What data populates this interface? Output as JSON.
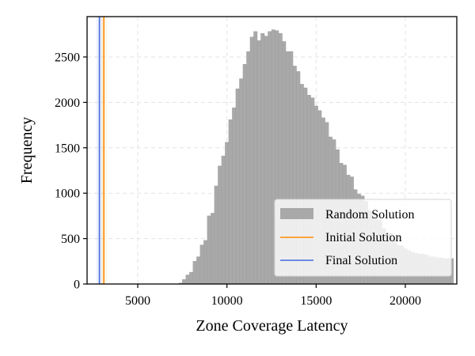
{
  "chart_data": {
    "type": "bar",
    "subtype": "histogram",
    "title": "",
    "xlabel": "Zone Coverage Latency",
    "ylabel": "Frequency",
    "xlim": [
      2160,
      22885
    ],
    "ylim": [
      0,
      2944
    ],
    "xticks": [
      5000,
      10000,
      15000,
      20000
    ],
    "xtick_labels": [
      "5000",
      "10000",
      "15000",
      "20000"
    ],
    "yticks": [
      0,
      500,
      1000,
      1500,
      2000,
      2500
    ],
    "ytick_labels": [
      "0",
      "500",
      "1000",
      "1500",
      "2000",
      "2500"
    ],
    "grid": true,
    "grid_style": "dashed",
    "legend_position": "lower right",
    "legend": [
      {
        "label": "Random Solution",
        "type": "patch",
        "color": "#a9a9a9"
      },
      {
        "label": "Initial Solution",
        "type": "line",
        "color": "#ff8c00"
      },
      {
        "label": "Final Solution",
        "type": "line",
        "color": "#4169e1"
      }
    ],
    "histogram": {
      "name": "Random Solution",
      "color": "#a9a9a9",
      "bin_start": 7300,
      "bin_width": 200,
      "values": [
        10,
        50,
        100,
        130,
        250,
        300,
        430,
        480,
        750,
        780,
        1080,
        1300,
        1410,
        1560,
        1810,
        1940,
        2150,
        2260,
        2420,
        2560,
        2720,
        2780,
        2680,
        2760,
        2730,
        2780,
        2800,
        2790,
        2760,
        2670,
        2560,
        2560,
        2400,
        2340,
        2200,
        2160,
        2080,
        2050,
        1960,
        1910,
        1830,
        1780,
        1620,
        1590,
        1480,
        1330,
        1310,
        1200,
        1180,
        1040,
        990,
        970,
        910,
        810,
        780,
        720,
        700,
        610,
        560,
        560,
        490,
        430,
        420,
        390,
        370,
        350,
        340,
        330,
        330,
        320,
        300,
        300,
        290,
        290,
        280,
        280,
        280
      ]
    },
    "vlines": [
      {
        "name": "Initial Solution",
        "x": 3100,
        "color": "#ff8c00"
      },
      {
        "name": "Final Solution",
        "x": 2850,
        "color": "#4169e1"
      }
    ]
  },
  "axes": {
    "xlabel": "Zone Coverage Latency",
    "ylabel": "Frequency"
  },
  "legend": {
    "items": [
      {
        "label": "Random Solution"
      },
      {
        "label": "Initial Solution"
      },
      {
        "label": "Final Solution"
      }
    ]
  }
}
